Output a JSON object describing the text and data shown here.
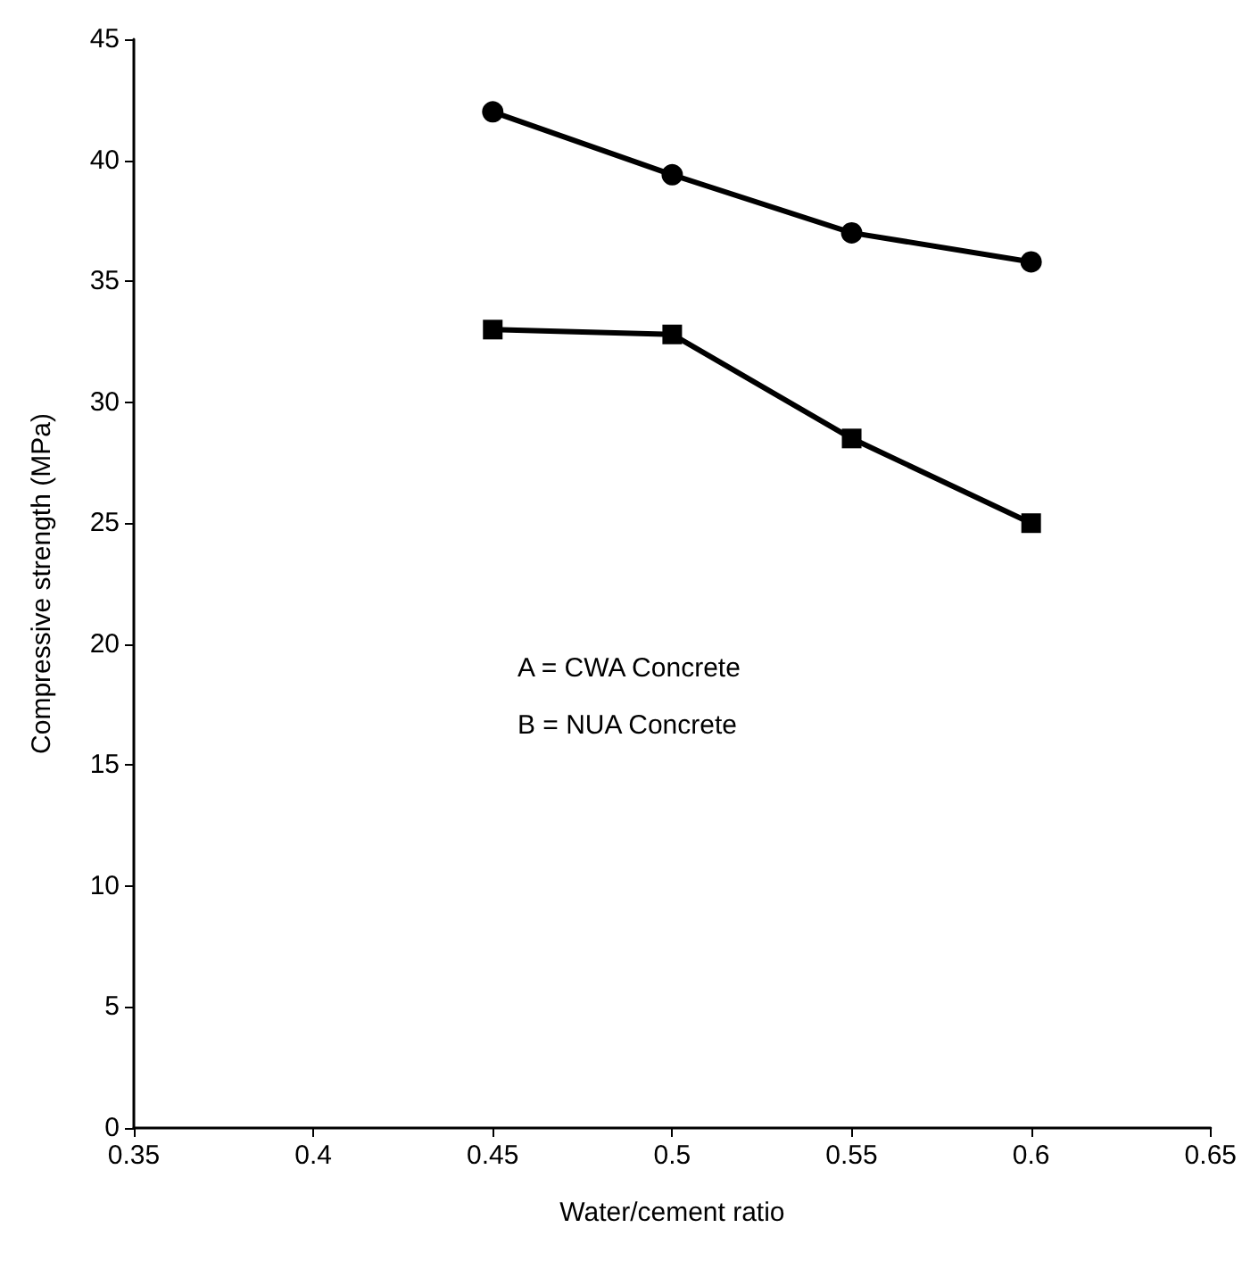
{
  "chart_data": {
    "type": "line",
    "xlabel": "Water/cement ratio",
    "ylabel": "Compressive strength (MPa)",
    "x": [
      0.45,
      0.5,
      0.55,
      0.6
    ],
    "series": [
      {
        "color": "#000000",
        "marker": "circle",
        "values": [
          42,
          39.4,
          37,
          35.8
        ]
      },
      {
        "color": "#000000",
        "marker": "square",
        "values": [
          33,
          32.8,
          28.5,
          25
        ]
      }
    ],
    "xlim": [
      0.35,
      0.65
    ],
    "xticks": [
      0.35,
      0.4,
      0.45,
      0.5,
      0.55,
      0.6,
      0.65
    ],
    "ylim": [
      0,
      45
    ],
    "yticks": [
      0,
      5,
      10,
      15,
      20,
      25,
      30,
      35,
      40,
      45
    ],
    "grid": false,
    "line_style": "solid",
    "annotations": [
      "A = CWA Concrete",
      "B = NUA Concrete"
    ]
  }
}
